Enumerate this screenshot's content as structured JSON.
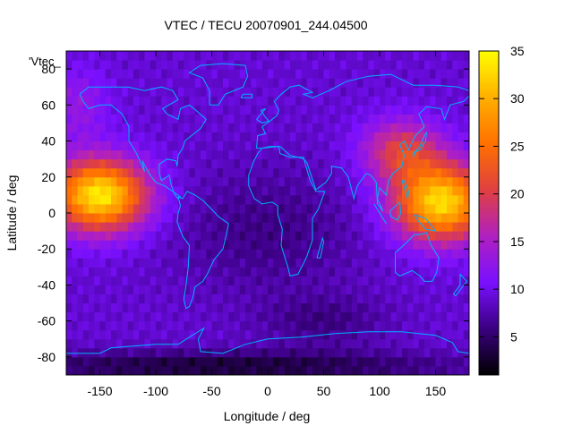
{
  "chart_data": {
    "type": "heatmap",
    "title": "VTEC / TECU 20070901_244.04500",
    "xlabel": "Longitude / deg",
    "ylabel": "Latitude / deg",
    "xlim": [
      -180,
      180
    ],
    "ylim": [
      -90,
      90
    ],
    "x_ticks": [
      -150,
      -100,
      -50,
      0,
      50,
      100,
      150
    ],
    "y_ticks": [
      -80,
      -60,
      -40,
      -20,
      0,
      20,
      40,
      60,
      80
    ],
    "series_label": "'Vtec_",
    "colorbar": {
      "range": [
        1,
        35
      ],
      "ticks": [
        5,
        10,
        15,
        20,
        25,
        30,
        35
      ],
      "palette": [
        "#000000",
        "#3a0080",
        "#7a10ff",
        "#b020c0",
        "#e04040",
        "#ff7000",
        "#ffb000",
        "#ffff00"
      ]
    },
    "data": {
      "grid_lon_step": 5,
      "grid_lat_step": 5,
      "background_vtec": 9,
      "blobs": [
        {
          "lon": -150,
          "lat": 10,
          "peak": 25,
          "lon_sigma": 30,
          "lat_sigma": 14
        },
        {
          "lon": 155,
          "lat": 6,
          "peak": 24,
          "lon_sigma": 30,
          "lat_sigma": 15
        },
        {
          "lon": 120,
          "lat": 35,
          "peak": 11,
          "lon_sigma": 25,
          "lat_sigma": 12
        },
        {
          "lon": -170,
          "lat": 60,
          "peak": 4,
          "lon_sigma": 20,
          "lat_sigma": 15
        },
        {
          "lon": 0,
          "lat": -10,
          "peak": -3,
          "lon_sigma": 60,
          "lat_sigma": 25
        },
        {
          "lon": -40,
          "lat": -85,
          "peak": -6,
          "lon_sigma": 150,
          "lat_sigma": 6
        },
        {
          "lon": 50,
          "lat": -60,
          "peak": -3,
          "lon_sigma": 40,
          "lat_sigma": 10
        }
      ]
    }
  },
  "coastline_color": "#00b0ff"
}
